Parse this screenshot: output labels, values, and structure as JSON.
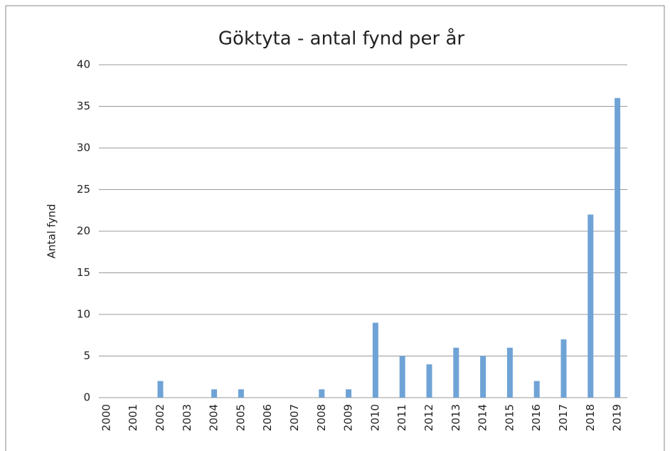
{
  "chart_data": {
    "type": "bar",
    "title": "Göktyta - antal fynd per år",
    "y_label": "Antal fynd",
    "categories": [
      "2000",
      "2001",
      "2002",
      "2003",
      "2004",
      "2005",
      "2006",
      "2007",
      "2008",
      "2009",
      "2010",
      "2011",
      "2012",
      "2013",
      "2014",
      "2015",
      "2016",
      "2017",
      "2018",
      "2019"
    ],
    "values": [
      0,
      0,
      2,
      0,
      1,
      1,
      0,
      0,
      1,
      1,
      9,
      5,
      4,
      6,
      5,
      6,
      2,
      7,
      22,
      36
    ],
    "color": "#6fa3d6",
    "ylim": [
      0,
      40
    ],
    "yticks": [
      0,
      5,
      10,
      15,
      20,
      25,
      30,
      35,
      40
    ],
    "grid": true
  }
}
